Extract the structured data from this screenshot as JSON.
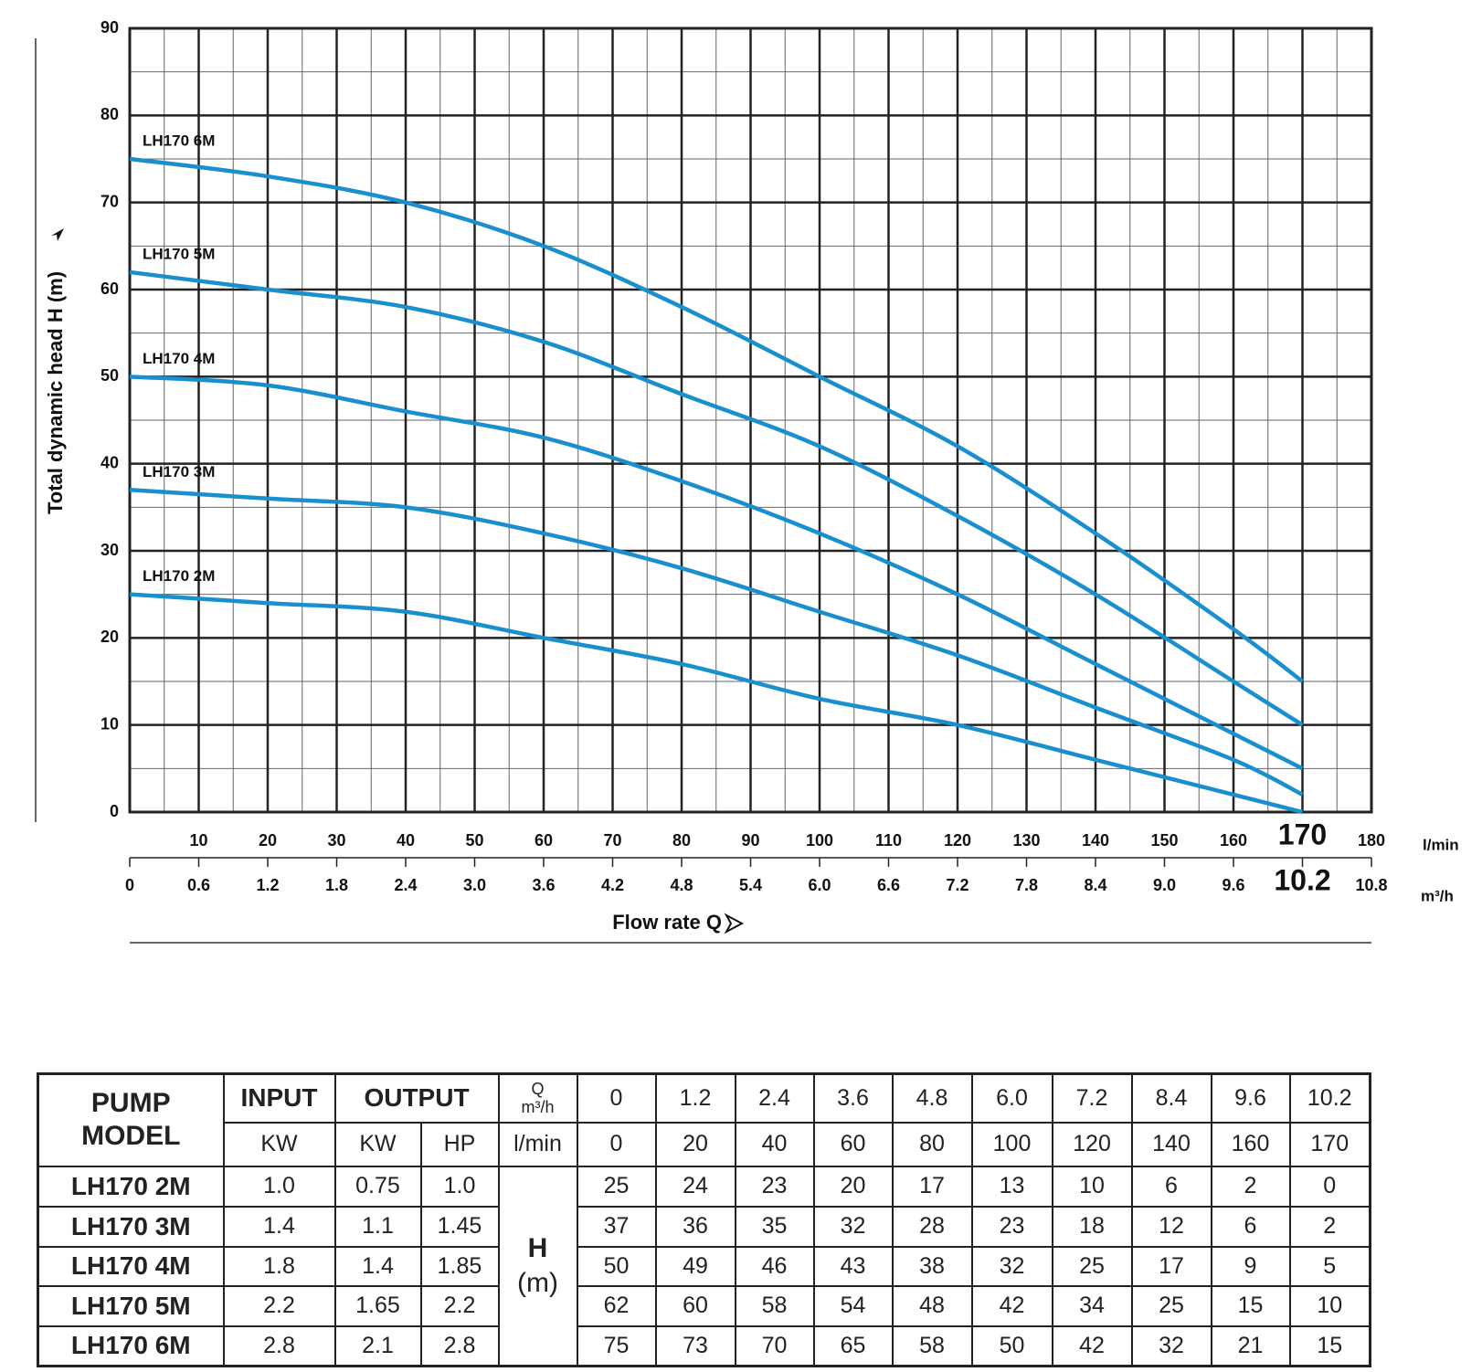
{
  "chart_data": {
    "type": "line",
    "ylabel": "Total dynamic head H (m)",
    "xlabel": "Flow rate Q",
    "x_unit": "l/min",
    "x2_unit": "m³/h",
    "x": [
      0,
      20,
      40,
      60,
      80,
      100,
      120,
      140,
      160,
      170
    ],
    "series": [
      {
        "name": "LH170 2M",
        "color": "#1a8fd0",
        "values": [
          25,
          24,
          23,
          20,
          17,
          13,
          10,
          6,
          2,
          0
        ]
      },
      {
        "name": "LH170 3M",
        "color": "#1a8fd0",
        "values": [
          37,
          36,
          35,
          32,
          28,
          23,
          18,
          12,
          6,
          2
        ]
      },
      {
        "name": "LH170 4M",
        "color": "#1a8fd0",
        "values": [
          50,
          49,
          46,
          43,
          38,
          32,
          25,
          17,
          9,
          5
        ]
      },
      {
        "name": "LH170 5M",
        "color": "#1a8fd0",
        "values": [
          62,
          60,
          58,
          54,
          48,
          42,
          34,
          25,
          15,
          10
        ]
      },
      {
        "name": "LH170 6M",
        "color": "#1a8fd0",
        "values": [
          75,
          73,
          70,
          65,
          58,
          50,
          42,
          32,
          21,
          15
        ]
      }
    ],
    "xlim": [
      0,
      180
    ],
    "xticks": [
      10,
      20,
      30,
      40,
      50,
      60,
      70,
      80,
      90,
      100,
      110,
      120,
      130,
      140,
      150,
      160,
      170,
      180
    ],
    "x2lim": [
      0,
      10.8
    ],
    "x2ticks": [
      0,
      0.6,
      1.2,
      1.8,
      2.4,
      {
        "value": 3,
        "label": "3.0"
      },
      3.6,
      4.2,
      4.8,
      5.4,
      {
        "value": 6,
        "label": "6.0"
      },
      6.6,
      7.2,
      7.8,
      8.4,
      {
        "value": 9,
        "label": "9.0"
      },
      9.6,
      10.2,
      10.8
    ],
    "emphasized_xtick": 170,
    "emphasized_x2tick": 10.2,
    "ylim": [
      0,
      90
    ],
    "yticks": [
      0,
      10,
      20,
      30,
      40,
      50,
      60,
      70,
      80,
      90
    ],
    "grid": true
  },
  "table": {
    "model_header": "PUMP MODEL",
    "input_header": "INPUT",
    "output_header": "OUTPUT",
    "input_unit": "KW",
    "output_units": [
      "KW",
      "HP"
    ],
    "q_header": "Q",
    "q_unit_m3h": "m³/h",
    "q_unit_lmin": "l/min",
    "h_header": "H",
    "h_unit": "(m)",
    "q_m3h": [
      "0",
      "1.2",
      "2.4",
      "3.6",
      "4.8",
      "6.0",
      "7.2",
      "8.4",
      "9.6",
      "10.2"
    ],
    "rows": [
      {
        "input": "1.0",
        "output_kw": "0.75",
        "output_hp": "1.0"
      },
      {
        "input": "1.4",
        "output_kw": "1.1",
        "output_hp": "1.45"
      },
      {
        "input": "1.8",
        "output_kw": "1.4",
        "output_hp": "1.85"
      },
      {
        "input": "2.2",
        "output_kw": "1.65",
        "output_hp": "2.2"
      },
      {
        "input": "2.8",
        "output_kw": "2.1",
        "output_hp": "2.8"
      }
    ]
  }
}
